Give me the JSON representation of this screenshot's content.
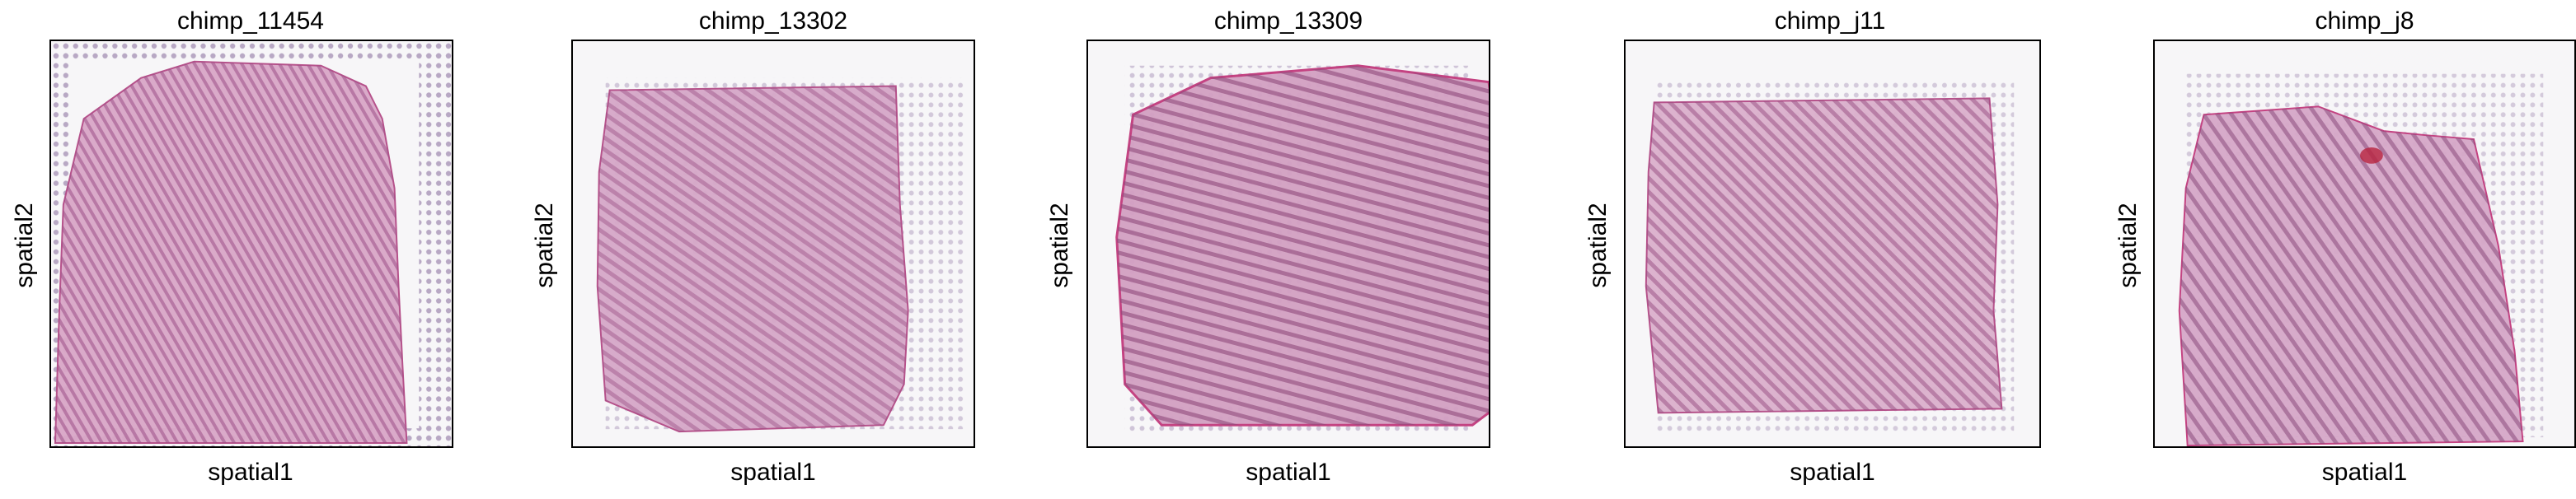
{
  "figure": {
    "panels": [
      {
        "title": "chimp_11454",
        "xlabel": "spatial1",
        "ylabel": "spatial2"
      },
      {
        "title": "chimp_13302",
        "xlabel": "spatial1",
        "ylabel": "spatial2"
      },
      {
        "title": "chimp_13309",
        "xlabel": "spatial1",
        "ylabel": "spatial2"
      },
      {
        "title": "chimp_j11",
        "xlabel": "spatial1",
        "ylabel": "spatial2"
      },
      {
        "title": "chimp_j8",
        "xlabel": "spatial1",
        "ylabel": "spatial2"
      }
    ]
  },
  "colors": {
    "tissue_fill": "#d9a6c7",
    "tissue_stroke": "#b34a86",
    "tissue_texture": "#9c4f86",
    "fiducial": "#b8a8c4",
    "background": "#f7f6f8"
  }
}
